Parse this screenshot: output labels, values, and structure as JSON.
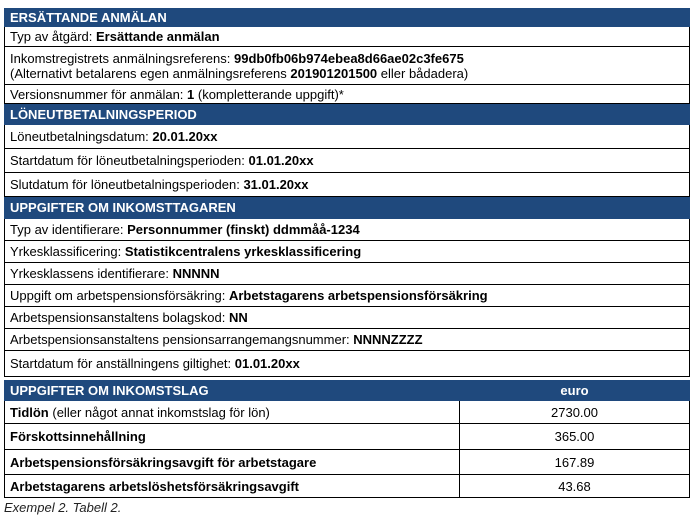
{
  "section1": {
    "title": "ERSÄTTANDE ANMÄLAN",
    "action_label": "Typ av åtgärd: ",
    "action_value": "Ersättande anmälan",
    "ref_label": "Inkomstregistrets anmälningsreferens: ",
    "ref_value": "99db0fb06b974ebea8d66ae02c3fe675",
    "alt_prefix": "(Alternativt betalarens egen anmälningsreferens ",
    "alt_value": "201901201500",
    "alt_suffix": " eller bådadera)",
    "version_label": "Versionsnummer för anmälan: ",
    "version_value": "1",
    "version_suffix": " (kompletterande uppgift)*"
  },
  "section2": {
    "title": "LÖNEUTBETALNINGSPERIOD",
    "rows": [
      {
        "label": "Löneutbetalningsdatum: ",
        "value": "20.01.20xx"
      },
      {
        "label": "Startdatum för löneutbetalningsperioden: ",
        "value": "01.01.20xx"
      },
      {
        "label": "Slutdatum för löneutbetalningsperioden: ",
        "value": "31.01.20xx"
      }
    ]
  },
  "section3": {
    "title": "UPPGIFTER OM INKOMSTTAGAREN",
    "rows": [
      {
        "label": "Typ av identifierare: ",
        "value": "Personnummer (finskt) ddmmåå-1234"
      },
      {
        "label": "Yrkesklassificering: ",
        "value": "Statistikcentralens yrkesklassificering"
      },
      {
        "label": "Yrkesklassens identifierare: ",
        "value": "NNNNN"
      },
      {
        "label": "Uppgift om arbetspensionsförsäkring: ",
        "value": "Arbetstagarens arbetspensionsförsäkring"
      },
      {
        "label": "Arbetspensionsanstaltens bolagskod: ",
        "value": "NN"
      },
      {
        "label": "Arbetspensionsanstaltens pensionsarrangemangsnummer: ",
        "value": "NNNNZZZZ"
      },
      {
        "label": "Startdatum för anställningens giltighet: ",
        "value": "01.01.20xx"
      }
    ]
  },
  "section4": {
    "title": "UPPGIFTER OM INKOMSTSLAG",
    "unit": "euro",
    "rows": [
      {
        "label": "Tidlön",
        "note": " (eller något annat inkomstslag för lön)",
        "amount": "2730.00"
      },
      {
        "label": "Förskottsinnehållning",
        "note": "",
        "amount": "365.00"
      },
      {
        "label": "Arbetspensionsförsäkringsavgift för arbetstagare",
        "note": "",
        "amount": "167.89"
      },
      {
        "label": "Arbetstagarens arbetslöshetsförsäkringsavgift",
        "note": "",
        "amount": "43.68"
      }
    ]
  },
  "caption": "Exempel 2. Tabell 2."
}
